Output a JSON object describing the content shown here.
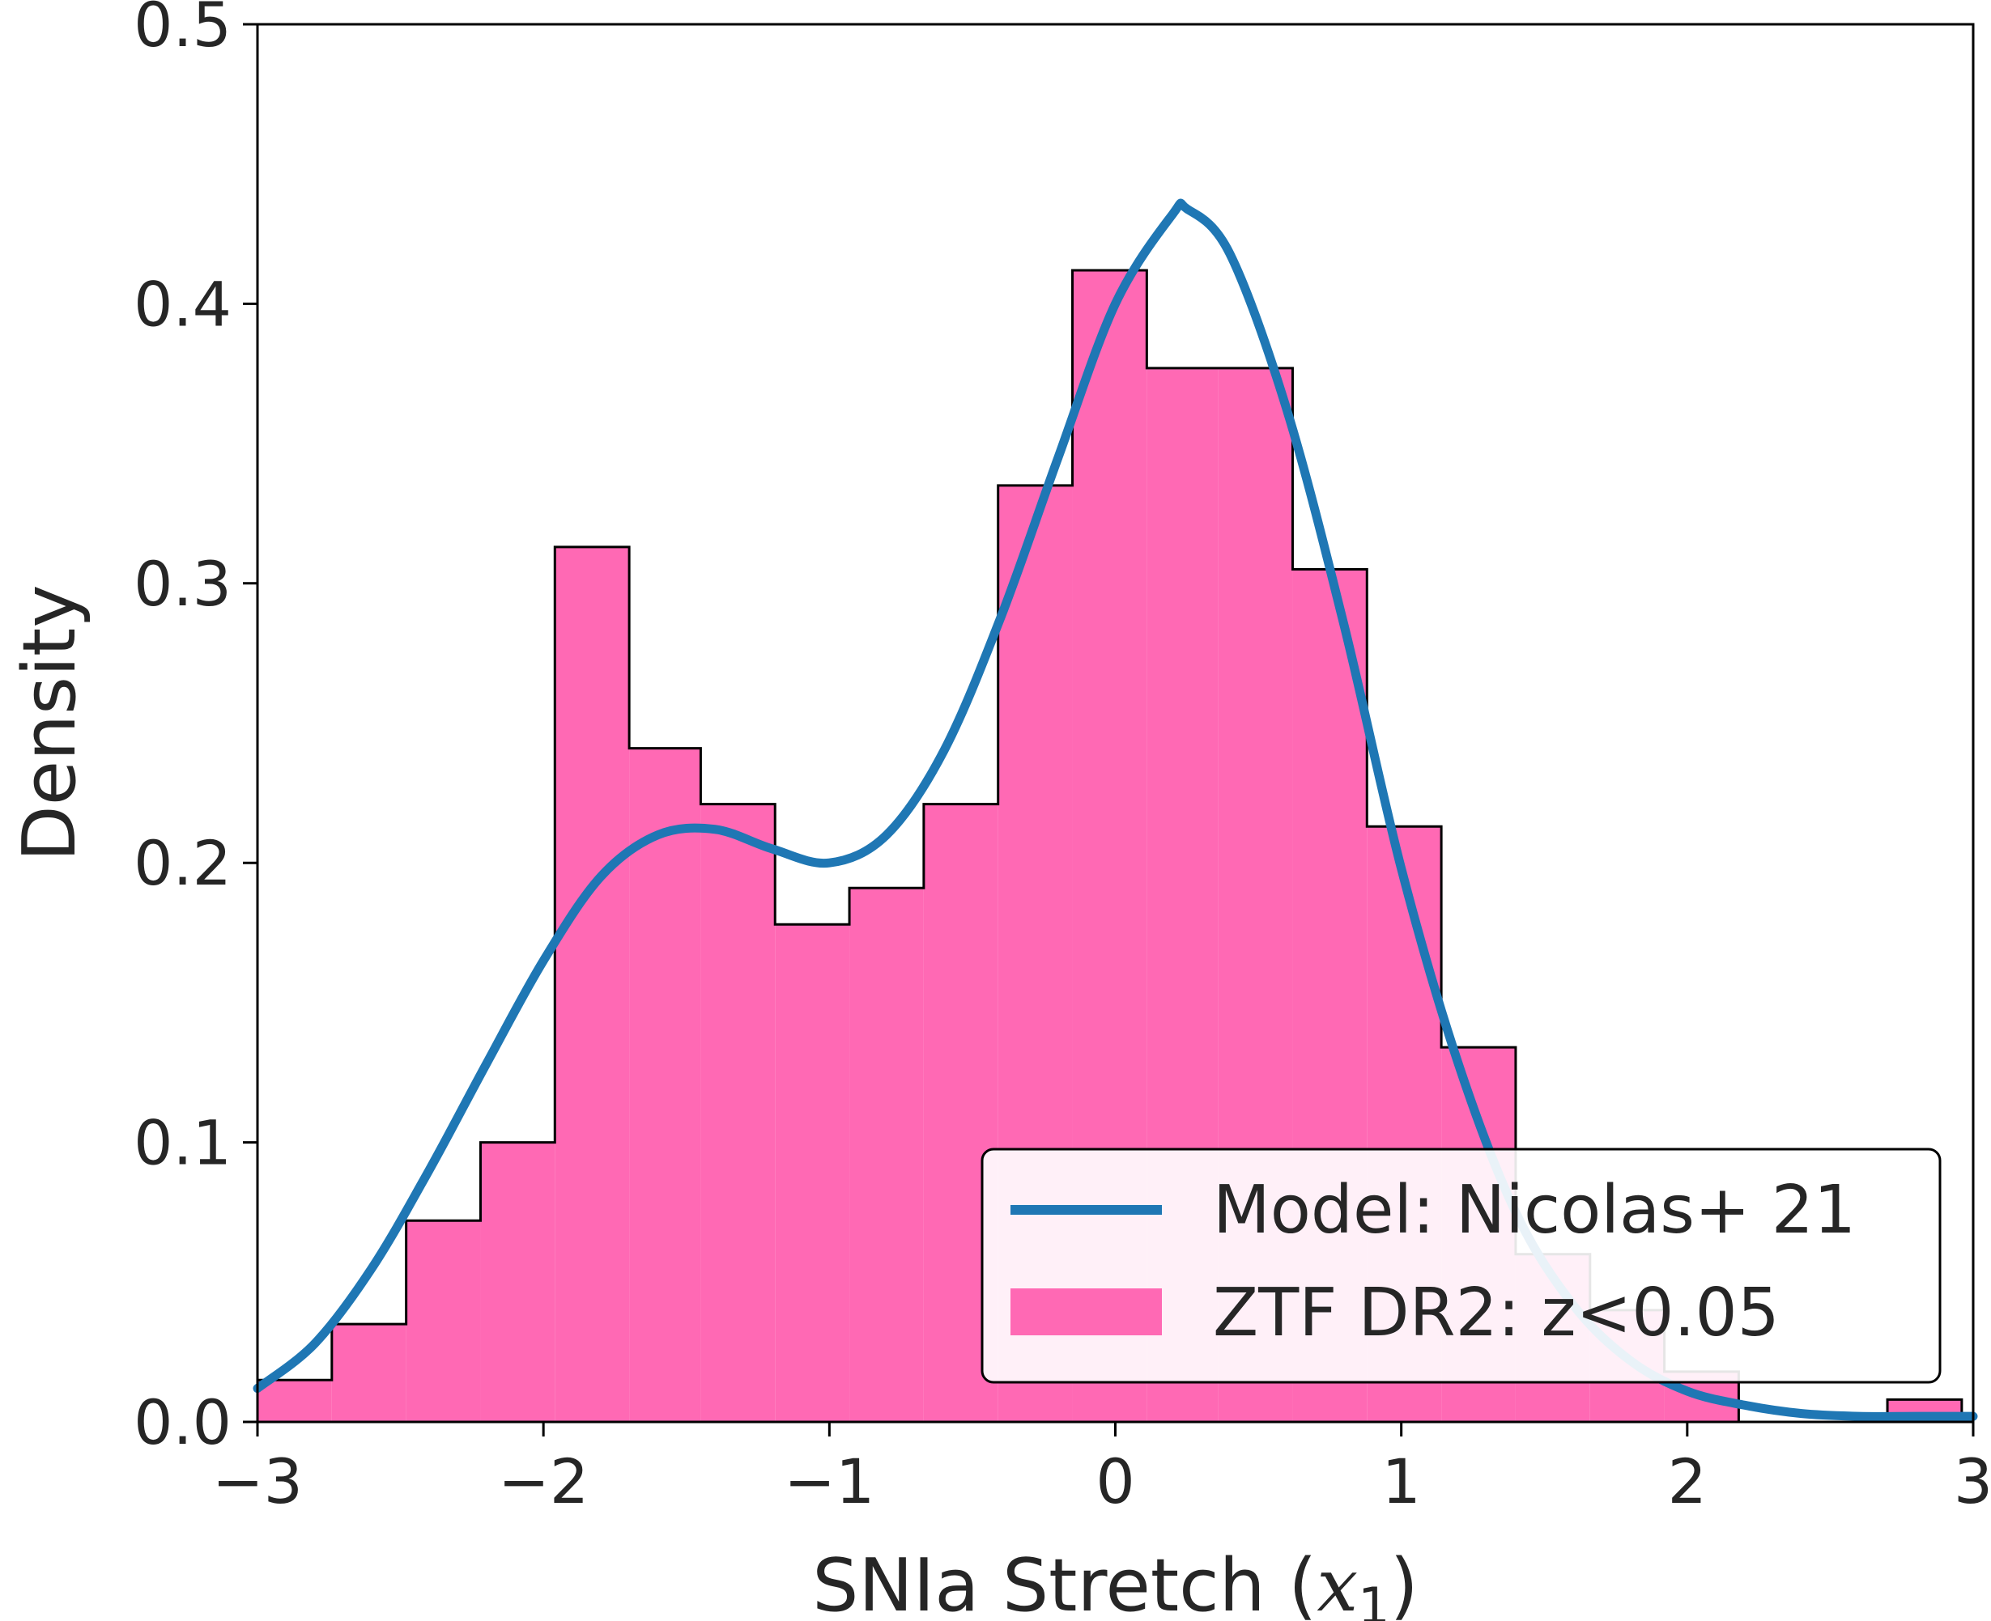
{
  "chart_data": {
    "type": "bar",
    "xlabel": "SNIa Stretch (x₁)",
    "xlabel_parts": {
      "main": "SNIa Stretch (",
      "var": "x",
      "sub": "1",
      "close": ")"
    },
    "ylabel": "Density",
    "xlim": [
      -3,
      3
    ],
    "ylim": [
      0,
      0.5
    ],
    "grid": false,
    "legend_position": "bottom-right",
    "xticks": [
      -3,
      -2,
      -1,
      0,
      1,
      2,
      3
    ],
    "xtick_labels": [
      "−3",
      "−2",
      "−1",
      "0",
      "1",
      "2",
      "3"
    ],
    "yticks": [
      0.0,
      0.1,
      0.2,
      0.3,
      0.4,
      0.5
    ],
    "ytick_labels": [
      "0.0",
      "0.1",
      "0.2",
      "0.3",
      "0.4",
      "0.5"
    ],
    "histogram": {
      "name": "ZTF DR2: z<0.05",
      "color": "#ff69b4",
      "edges": [
        -3.0,
        -2.74,
        -2.48,
        -2.22,
        -1.96,
        -1.7,
        -1.45,
        -1.19,
        -0.93,
        -0.67,
        -0.41,
        -0.15,
        0.11,
        0.36,
        0.62,
        0.88,
        1.14,
        1.4,
        1.66,
        1.92,
        2.18,
        2.44,
        2.7,
        2.96
      ],
      "values": [
        0.015,
        0.035,
        0.072,
        0.1,
        0.313,
        0.241,
        0.221,
        0.178,
        0.191,
        0.221,
        0.335,
        0.412,
        0.377,
        0.377,
        0.305,
        0.213,
        0.134,
        0.06,
        0.04,
        0.018,
        0.0,
        0.0,
        0.008
      ]
    },
    "model": {
      "name": "Model: Nicolas+ 21",
      "color": "#1f77b4",
      "x": [
        -3.0,
        -2.8,
        -2.6,
        -2.4,
        -2.2,
        -2.0,
        -1.8,
        -1.6,
        -1.4,
        -1.2,
        -1.0,
        -0.8,
        -0.6,
        -0.4,
        -0.2,
        0.0,
        0.2,
        0.25,
        0.4,
        0.6,
        0.8,
        1.0,
        1.2,
        1.4,
        1.6,
        1.8,
        2.0,
        2.2,
        2.4,
        2.6,
        2.8,
        3.0
      ],
      "y": [
        0.012,
        0.028,
        0.055,
        0.09,
        0.128,
        0.165,
        0.195,
        0.21,
        0.212,
        0.205,
        0.2,
        0.21,
        0.24,
        0.288,
        0.345,
        0.4,
        0.432,
        0.434,
        0.418,
        0.362,
        0.285,
        0.198,
        0.128,
        0.075,
        0.042,
        0.022,
        0.011,
        0.006,
        0.003,
        0.002,
        0.002,
        0.002
      ]
    }
  }
}
